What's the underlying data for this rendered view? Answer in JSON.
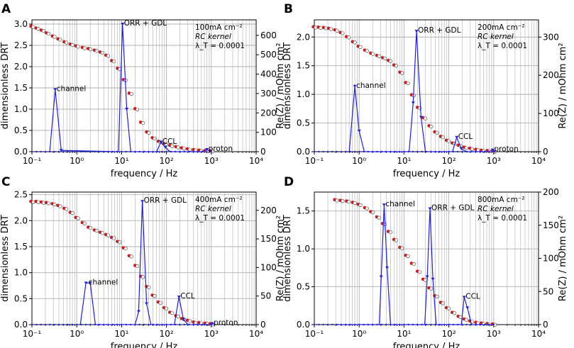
{
  "figure": {
    "x_axis_label": "frequency / Hz",
    "y_left_label": "dimensionless DRT",
    "y_right_label": "Re(Z) / mOhm cm²",
    "kernel_label": "RC kernel",
    "lambda_label": "λ_T = 0.0001",
    "series_names": [
      "DRT (blue line)",
      "Re(Z) measured (red)",
      "Re(Z) fitted (white)"
    ]
  },
  "colors": {
    "drt": "#1f1fe0",
    "re_measured": "#d61a1a",
    "re_fit": "#ffffff",
    "grid": "#b0b0b0"
  },
  "chart_data": [
    {
      "panel": "A",
      "type": "line",
      "title": "100mA cm⁻²",
      "xlim": [
        0.1,
        10000
      ],
      "x_ticks": [
        "10⁻¹",
        "10⁰",
        "10¹",
        "10²",
        "10³",
        "10⁴"
      ],
      "ylim_left": [
        0,
        3.1
      ],
      "y_left_ticks": [
        0.0,
        0.5,
        1.0,
        1.5,
        2.0,
        2.5,
        3.0
      ],
      "ylim_right": [
        0,
        680
      ],
      "y_right_ticks": [
        0,
        100,
        200,
        300,
        400,
        500,
        600
      ],
      "drt": [
        [
          0.25,
          0
        ],
        [
          0.33,
          1.46
        ],
        [
          0.45,
          0.03
        ],
        [
          8.5,
          0
        ],
        [
          10.5,
          3.0
        ],
        [
          13,
          1.0
        ],
        [
          16,
          0
        ],
        [
          60,
          0
        ],
        [
          75,
          0.22
        ],
        [
          95,
          0.1
        ],
        [
          120,
          0
        ],
        [
          600,
          0
        ],
        [
          800,
          0.05
        ],
        [
          1000,
          0
        ]
      ],
      "re_z": [
        [
          0.1,
          645
        ],
        [
          0.13,
          636
        ],
        [
          0.17,
          625
        ],
        [
          0.22,
          611
        ],
        [
          0.3,
          595
        ],
        [
          0.4,
          580
        ],
        [
          0.55,
          565
        ],
        [
          0.75,
          553
        ],
        [
          1.0,
          544
        ],
        [
          1.4,
          536
        ],
        [
          1.9,
          530
        ],
        [
          2.6,
          522
        ],
        [
          3.5,
          512
        ],
        [
          4.7,
          496
        ],
        [
          6.3,
          468
        ],
        [
          8.5,
          428
        ],
        [
          11.5,
          370
        ],
        [
          15.5,
          300
        ],
        [
          21,
          220
        ],
        [
          28,
          150
        ],
        [
          38,
          100
        ],
        [
          51,
          70
        ],
        [
          69,
          52
        ],
        [
          93,
          40
        ],
        [
          125,
          31
        ],
        [
          170,
          24
        ],
        [
          230,
          18
        ],
        [
          310,
          13
        ],
        [
          420,
          9
        ],
        [
          560,
          6
        ],
        [
          760,
          4
        ],
        [
          1000,
          3
        ]
      ],
      "annotations": [
        {
          "text": "channel",
          "x": 0.33,
          "y": 1.46
        },
        {
          "text": "ORR + GDL",
          "x": 10.5,
          "y": 3.0
        },
        {
          "text": "CCL",
          "x": 75,
          "y": 0.22
        },
        {
          "text": "proton",
          "x": 800,
          "y": 0.05
        }
      ]
    },
    {
      "panel": "B",
      "type": "line",
      "title": "200mA cm⁻²",
      "xlim": [
        0.1,
        10000
      ],
      "x_ticks": [
        "10⁻¹",
        "10⁰",
        "10¹",
        "10²",
        "10³",
        "10⁴"
      ],
      "ylim_left": [
        0,
        2.3
      ],
      "y_left_ticks": [
        0.0,
        0.5,
        1.0,
        1.5,
        2.0
      ],
      "ylim_right": [
        0,
        345
      ],
      "y_right_ticks": [
        0,
        100,
        200,
        300
      ],
      "drt": [
        [
          0.6,
          0
        ],
        [
          0.8,
          1.14
        ],
        [
          1.0,
          0.36
        ],
        [
          1.3,
          0
        ],
        [
          13,
          0
        ],
        [
          16,
          0.85
        ],
        [
          19,
          2.1
        ],
        [
          24,
          0.6
        ],
        [
          30,
          0
        ],
        [
          120,
          0
        ],
        [
          150,
          0.25
        ],
        [
          190,
          0.05
        ],
        [
          250,
          0
        ],
        [
          800,
          0
        ],
        [
          950,
          0.03
        ],
        [
          1100,
          0
        ]
      ],
      "re_z": [
        [
          0.1,
          326
        ],
        [
          0.13,
          325
        ],
        [
          0.17,
          324
        ],
        [
          0.22,
          322
        ],
        [
          0.3,
          318
        ],
        [
          0.4,
          311
        ],
        [
          0.55,
          300
        ],
        [
          0.75,
          287
        ],
        [
          1.0,
          275
        ],
        [
          1.4,
          265
        ],
        [
          1.9,
          257
        ],
        [
          2.6,
          251
        ],
        [
          3.5,
          245
        ],
        [
          4.7,
          238
        ],
        [
          6.3,
          226
        ],
        [
          8.5,
          207
        ],
        [
          11.5,
          180
        ],
        [
          15.5,
          148
        ],
        [
          21,
          115
        ],
        [
          28,
          88
        ],
        [
          38,
          67
        ],
        [
          51,
          51
        ],
        [
          69,
          39
        ],
        [
          93,
          29
        ],
        [
          125,
          22
        ],
        [
          170,
          16
        ],
        [
          230,
          11
        ],
        [
          310,
          8
        ],
        [
          420,
          5
        ],
        [
          560,
          3
        ],
        [
          760,
          2
        ],
        [
          1000,
          1
        ]
      ],
      "annotations": [
        {
          "text": "channel",
          "x": 0.8,
          "y": 1.14
        },
        {
          "text": "ORR + GDL",
          "x": 19,
          "y": 2.1
        },
        {
          "text": "CCL",
          "x": 150,
          "y": 0.25
        },
        {
          "text": "proton",
          "x": 950,
          "y": 0.03
        }
      ]
    },
    {
      "panel": "C",
      "type": "line",
      "title": "400mA cm⁻²",
      "xlim": [
        0.1,
        10000
      ],
      "x_ticks": [
        "10⁻¹",
        "10⁰",
        "10¹",
        "10²",
        "10³",
        "10⁴"
      ],
      "ylim_left": [
        0,
        2.55
      ],
      "y_left_ticks": [
        0.0,
        0.5,
        1.0,
        1.5,
        2.0,
        2.5
      ],
      "ylim_right": [
        0,
        232
      ],
      "y_right_ticks": [
        0,
        50,
        100,
        150,
        200
      ],
      "drt": [
        [
          1.2,
          0
        ],
        [
          1.6,
          0.8
        ],
        [
          2.0,
          0.8
        ],
        [
          2.6,
          0
        ],
        [
          20,
          0
        ],
        [
          24,
          0.25
        ],
        [
          29,
          2.37
        ],
        [
          36,
          0.4
        ],
        [
          45,
          0
        ],
        [
          150,
          0
        ],
        [
          190,
          0.53
        ],
        [
          240,
          0.1
        ],
        [
          300,
          0
        ],
        [
          900,
          0
        ],
        [
          1050,
          0.02
        ],
        [
          1250,
          0
        ]
      ],
      "re_z": [
        [
          0.1,
          215
        ],
        [
          0.13,
          215
        ],
        [
          0.17,
          214
        ],
        [
          0.22,
          213
        ],
        [
          0.3,
          211
        ],
        [
          0.4,
          208
        ],
        [
          0.55,
          203
        ],
        [
          0.75,
          196
        ],
        [
          1.0,
          187
        ],
        [
          1.4,
          178
        ],
        [
          1.9,
          170
        ],
        [
          2.6,
          165
        ],
        [
          3.5,
          161
        ],
        [
          4.7,
          157
        ],
        [
          6.3,
          152
        ],
        [
          8.5,
          145
        ],
        [
          11.5,
          134
        ],
        [
          15.5,
          120
        ],
        [
          21,
          103
        ],
        [
          28,
          84
        ],
        [
          38,
          66
        ],
        [
          51,
          51
        ],
        [
          69,
          39
        ],
        [
          93,
          29
        ],
        [
          125,
          21
        ],
        [
          170,
          15
        ],
        [
          230,
          10
        ],
        [
          310,
          7
        ],
        [
          420,
          4
        ],
        [
          560,
          3
        ],
        [
          760,
          2
        ],
        [
          1000,
          1
        ]
      ],
      "annotations": [
        {
          "text": "channel",
          "x": 1.7,
          "y": 0.8
        },
        {
          "text": "ORR + GDL",
          "x": 29,
          "y": 2.37
        },
        {
          "text": "CCL",
          "x": 190,
          "y": 0.53
        },
        {
          "text": "proton",
          "x": 1050,
          "y": 0.02
        }
      ]
    },
    {
      "panel": "D",
      "type": "line",
      "title": "800mA cm⁻²",
      "xlim": [
        0.1,
        10000
      ],
      "x_ticks": [
        "10⁻¹",
        "10⁰",
        "10¹",
        "10²",
        "10³",
        "10⁴"
      ],
      "ylim_left": [
        0,
        1.75
      ],
      "y_left_ticks": [
        0.0,
        0.5,
        1.0,
        1.5
      ],
      "ylim_right": [
        0,
        200
      ],
      "y_right_ticks": [
        0,
        50,
        100,
        150,
        200
      ],
      "drt": [
        [
          0.3,
          0
        ],
        [
          2.8,
          0
        ],
        [
          3.1,
          0.63
        ],
        [
          3.6,
          1.58
        ],
        [
          4.2,
          0.75
        ],
        [
          5.0,
          0
        ],
        [
          29,
          0
        ],
        [
          33,
          0.63
        ],
        [
          38,
          1.53
        ],
        [
          44,
          0.6
        ],
        [
          52,
          0
        ],
        [
          190,
          0
        ],
        [
          220,
          0.36
        ],
        [
          260,
          0.22
        ],
        [
          320,
          0
        ],
        [
          1000,
          0
        ]
      ],
      "re_z": [
        [
          0.3,
          188
        ],
        [
          0.4,
          187
        ],
        [
          0.55,
          186
        ],
        [
          0.75,
          184
        ],
        [
          1.0,
          181
        ],
        [
          1.4,
          176
        ],
        [
          1.9,
          170
        ],
        [
          2.6,
          162
        ],
        [
          3.5,
          152
        ],
        [
          4.7,
          140
        ],
        [
          6.3,
          128
        ],
        [
          8.5,
          116
        ],
        [
          11.5,
          104
        ],
        [
          15.5,
          92
        ],
        [
          21,
          80
        ],
        [
          28,
          68
        ],
        [
          38,
          55
        ],
        [
          51,
          43
        ],
        [
          69,
          33
        ],
        [
          93,
          25
        ],
        [
          125,
          18
        ],
        [
          170,
          12
        ],
        [
          230,
          8
        ],
        [
          310,
          5
        ],
        [
          420,
          3
        ],
        [
          560,
          2
        ],
        [
          760,
          1
        ],
        [
          1000,
          0.5
        ]
      ],
      "annotations": [
        {
          "text": "channel",
          "x": 3.6,
          "y": 1.58
        },
        {
          "text": "ORR + GDL",
          "x": 38,
          "y": 1.53
        },
        {
          "text": "CCL",
          "x": 220,
          "y": 0.36
        }
      ]
    }
  ]
}
